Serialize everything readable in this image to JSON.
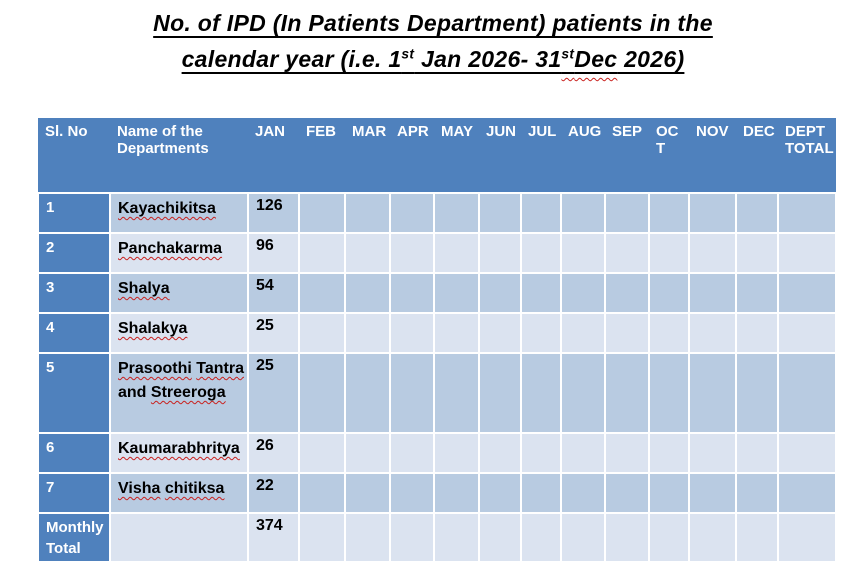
{
  "title": {
    "line1": "No. of IPD (In Patients Department) patients in the",
    "line2_pre": "calendar year (i.e. 1",
    "sup1": "st",
    "line2_mid": " Jan 2026- 31",
    "sup2": "st",
    "misspelled_word": "Dec",
    "line2_tail": " 2026)"
  },
  "table": {
    "columns": [
      {
        "key": "sl",
        "label": "Sl. No"
      },
      {
        "key": "name",
        "label": "Name of the Departments"
      },
      {
        "key": "jan",
        "label": "JAN"
      },
      {
        "key": "feb",
        "label": "FEB"
      },
      {
        "key": "mar",
        "label": "MAR"
      },
      {
        "key": "apr",
        "label": "APR"
      },
      {
        "key": "may",
        "label": "MAY"
      },
      {
        "key": "jun",
        "label": "JUN"
      },
      {
        "key": "jul",
        "label": "JUL"
      },
      {
        "key": "aug",
        "label": "AUG"
      },
      {
        "key": "sep",
        "label": "SEP"
      },
      {
        "key": "oct",
        "label": "OCT"
      },
      {
        "key": "nov",
        "label": "NOV"
      },
      {
        "key": "dec",
        "label": "DEC"
      },
      {
        "key": "dept_total",
        "label": "DEPT TOTAL"
      }
    ],
    "rows": [
      {
        "sl": "1",
        "name_words": [
          {
            "text": "Kayachikitsa",
            "misspelled": true
          }
        ],
        "values": {
          "jan": "126",
          "feb": "",
          "mar": "",
          "apr": "",
          "may": "",
          "jun": "",
          "jul": "",
          "aug": "",
          "sep": "",
          "oct": "",
          "nov": "",
          "dec": "",
          "dept_total": ""
        }
      },
      {
        "sl": "2",
        "name_words": [
          {
            "text": "Panchakarma",
            "misspelled": true
          }
        ],
        "values": {
          "jan": "96",
          "feb": "",
          "mar": "",
          "apr": "",
          "may": "",
          "jun": "",
          "jul": "",
          "aug": "",
          "sep": "",
          "oct": "",
          "nov": "",
          "dec": "",
          "dept_total": ""
        }
      },
      {
        "sl": "3",
        "name_words": [
          {
            "text": "Shalya",
            "misspelled": true
          }
        ],
        "values": {
          "jan": "54",
          "feb": "",
          "mar": "",
          "apr": "",
          "may": "",
          "jun": "",
          "jul": "",
          "aug": "",
          "sep": "",
          "oct": "",
          "nov": "",
          "dec": "",
          "dept_total": ""
        }
      },
      {
        "sl": "4",
        "name_words": [
          {
            "text": "Shalakya",
            "misspelled": true
          }
        ],
        "values": {
          "jan": "25",
          "feb": "",
          "mar": "",
          "apr": "",
          "may": "",
          "jun": "",
          "jul": "",
          "aug": "",
          "sep": "",
          "oct": "",
          "nov": "",
          "dec": "",
          "dept_total": ""
        }
      },
      {
        "sl": "5",
        "name_words": [
          {
            "text": "Prasoothi",
            "misspelled": true
          },
          {
            "text": "Tantra",
            "misspelled": true
          },
          {
            "text": "and",
            "misspelled": false
          },
          {
            "text": "Streeroga",
            "misspelled": true
          }
        ],
        "values": {
          "jan": "25",
          "feb": "",
          "mar": "",
          "apr": "",
          "may": "",
          "jun": "",
          "jul": "",
          "aug": "",
          "sep": "",
          "oct": "",
          "nov": "",
          "dec": "",
          "dept_total": ""
        }
      },
      {
        "sl": "6",
        "name_words": [
          {
            "text": "Kaumarabhritya",
            "misspelled": true
          }
        ],
        "values": {
          "jan": "26",
          "feb": "",
          "mar": "",
          "apr": "",
          "may": "",
          "jun": "",
          "jul": "",
          "aug": "",
          "sep": "",
          "oct": "",
          "nov": "",
          "dec": "",
          "dept_total": ""
        }
      },
      {
        "sl": "7",
        "name_words": [
          {
            "text": "Visha",
            "misspelled": true
          },
          {
            "text": "chitiksa",
            "misspelled": true
          }
        ],
        "values": {
          "jan": "22",
          "feb": "",
          "mar": "",
          "apr": "",
          "may": "",
          "jun": "",
          "jul": "",
          "aug": "",
          "sep": "",
          "oct": "",
          "nov": "",
          "dec": "",
          "dept_total": ""
        }
      },
      {
        "sl": "Monthly Total",
        "is_total": true,
        "name_words": [],
        "values": {
          "jan": "374",
          "feb": "",
          "mar": "",
          "apr": "",
          "may": "",
          "jun": "",
          "jul": "",
          "aug": "",
          "sep": "",
          "oct": "",
          "nov": "",
          "dec": "",
          "dept_total": ""
        }
      }
    ]
  },
  "colors": {
    "header_bg": "#4F81BD",
    "band_dark": "#B8CBE1",
    "band_light": "#DBE3F0",
    "grid": "#FFFFFF",
    "header_text": "#FFFFFF",
    "body_text": "#000000",
    "misspell_underline": "#C9211E"
  }
}
